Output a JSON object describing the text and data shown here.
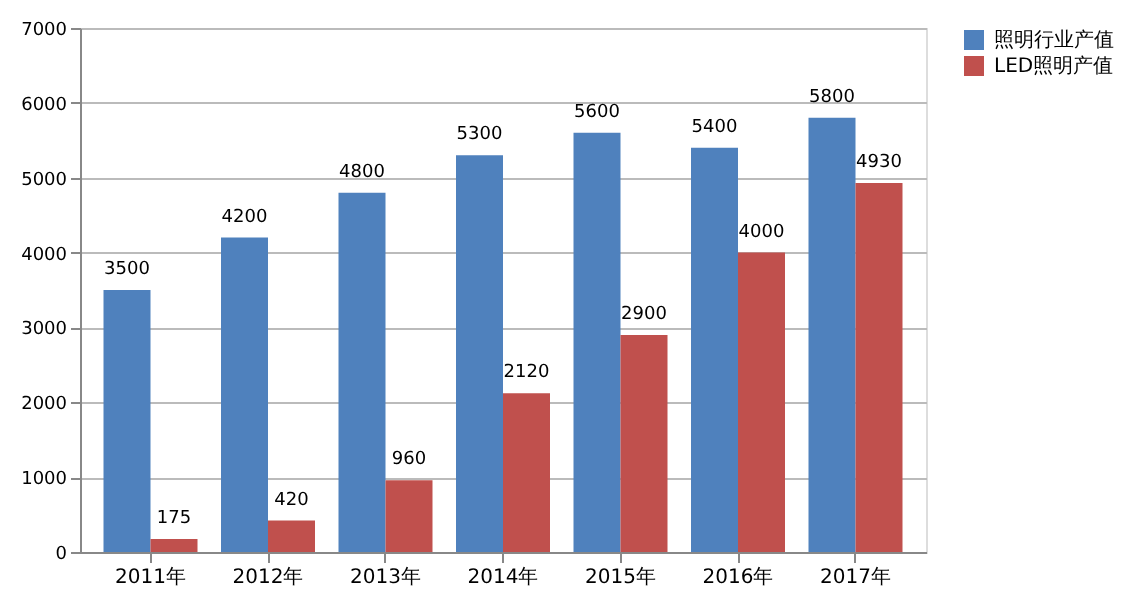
{
  "chart_data": {
    "type": "bar",
    "categories": [
      "2011年",
      "2012年",
      "2013年",
      "2014年",
      "2015年",
      "2016年",
      "2017年"
    ],
    "series": [
      {
        "name": "照明行业产值",
        "color": "#4f81bd",
        "values": [
          3500,
          4200,
          4800,
          5300,
          5600,
          5400,
          5800
        ]
      },
      {
        "name": "LED照明产值",
        "color": "#c0504d",
        "values": [
          175,
          420,
          960,
          2120,
          2900,
          4000,
          4930
        ]
      }
    ],
    "ylim": [
      0,
      7000
    ],
    "yticks": [
      0,
      1000,
      2000,
      3000,
      4000,
      5000,
      6000,
      7000
    ],
    "grid": "y",
    "legend": "right",
    "data_labels": true
  }
}
